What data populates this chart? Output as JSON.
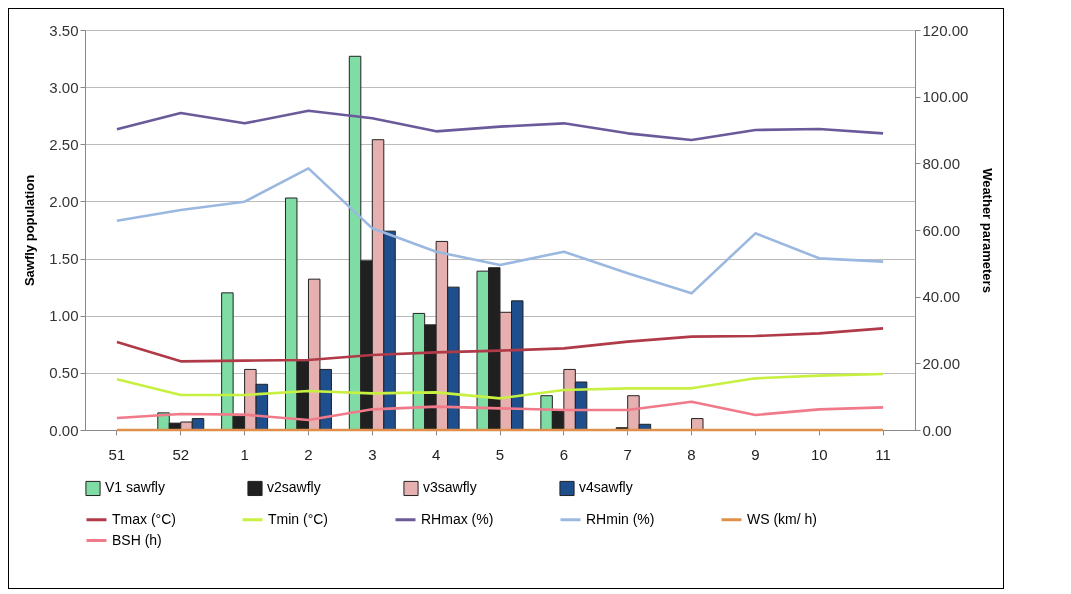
{
  "chart_data": {
    "type": "bar",
    "ylabel": "Sawfly population",
    "y2label": "Weather parameters",
    "categories": [
      "51",
      "52",
      "1",
      "2",
      "3",
      "4",
      "5",
      "6",
      "7",
      "8",
      "9",
      "10",
      "11"
    ],
    "ylim": [
      0,
      3.5
    ],
    "yticks": [
      {
        "value": 0,
        "label": "0.00"
      },
      {
        "value": 0.5,
        "label": "0.50"
      },
      {
        "value": 1,
        "label": "1.00"
      },
      {
        "value": 1.5,
        "label": "1.50"
      },
      {
        "value": 2,
        "label": "2.00"
      },
      {
        "value": 2.5,
        "label": "2.50"
      },
      {
        "value": 3,
        "label": "3.00"
      },
      {
        "value": 3.5,
        "label": "3.50"
      }
    ],
    "y2lim": [
      0,
      120
    ],
    "y2ticks": [
      {
        "value": 0,
        "label": "0.00"
      },
      {
        "value": 20,
        "label": "20.00"
      },
      {
        "value": 40,
        "label": "40.00"
      },
      {
        "value": 60,
        "label": "60.00"
      },
      {
        "value": 80,
        "label": "80.00"
      },
      {
        "value": 100,
        "label": "100.00"
      },
      {
        "value": 120,
        "label": "120.00"
      }
    ],
    "grid": "y",
    "legend": "bottom",
    "marker": "none",
    "line_style": "solid",
    "series": [
      {
        "name": "V1 sawfly",
        "color": "#7fdca4",
        "values": [
          0,
          0.15,
          1.2,
          2.03,
          3.27,
          1.02,
          1.39,
          0.3,
          0,
          0,
          0,
          0,
          0
        ]
      },
      {
        "name": "v2sawfly",
        "color": "#202020",
        "values": [
          0,
          0.06,
          0.12,
          0.6,
          1.48,
          0.92,
          1.42,
          0.17,
          0.02,
          0,
          0,
          0,
          0
        ]
      },
      {
        "name": "v3sawfly",
        "color": "#e6b0b0",
        "values": [
          0,
          0.07,
          0.53,
          1.32,
          2.54,
          1.65,
          1.03,
          0.53,
          0.3,
          0.1,
          0,
          0,
          0
        ]
      },
      {
        "name": "v4sawfly",
        "color": "#1f4e8c",
        "values": [
          0,
          0.1,
          0.4,
          0.53,
          1.74,
          1.25,
          1.13,
          0.42,
          0.05,
          0,
          0,
          0,
          0
        ]
      },
      {
        "name": "Tmax (°C)",
        "color": "#b03a48",
        "type": "line",
        "axis": "y2",
        "values": [
          26.4,
          20.6,
          20.8,
          21,
          22.5,
          23.3,
          23.8,
          24.5,
          26.5,
          28,
          28.2,
          29,
          30.5
        ]
      },
      {
        "name": "Tmin (°C)",
        "color": "#c8f040",
        "type": "line",
        "axis": "y2",
        "values": [
          15.2,
          10.5,
          10.5,
          11.7,
          11,
          11.3,
          9.5,
          12,
          12.5,
          12.5,
          15.5,
          16.3,
          16.8
        ]
      },
      {
        "name": "RHmax (%)",
        "color": "#6a5a9a",
        "type": "line",
        "axis": "y2",
        "values": [
          90.2,
          95.1,
          92,
          95.8,
          93.5,
          89.6,
          91,
          92,
          89,
          87,
          90,
          90.3,
          89
        ]
      },
      {
        "name": "RHmin (%)",
        "color": "#9ab8e0",
        "type": "line",
        "axis": "y2",
        "values": [
          62.8,
          66,
          68.5,
          78.5,
          60.5,
          53.5,
          49.5,
          53.5,
          47,
          41,
          59,
          51.5,
          50.5
        ]
      },
      {
        "name": "WS (km/ h)",
        "color": "#e0904a",
        "type": "line",
        "axis": "y2",
        "values": [
          0,
          0,
          0,
          0,
          0,
          0,
          0,
          0,
          0,
          0,
          0,
          0,
          0
        ]
      },
      {
        "name": "BSH (h)",
        "color": "#f07a8a",
        "type": "line",
        "axis": "y2",
        "values": [
          3.6,
          4.8,
          4.6,
          3,
          6.2,
          7,
          6.5,
          6,
          6,
          8.5,
          4.5,
          6.2,
          6.8
        ]
      }
    ]
  }
}
